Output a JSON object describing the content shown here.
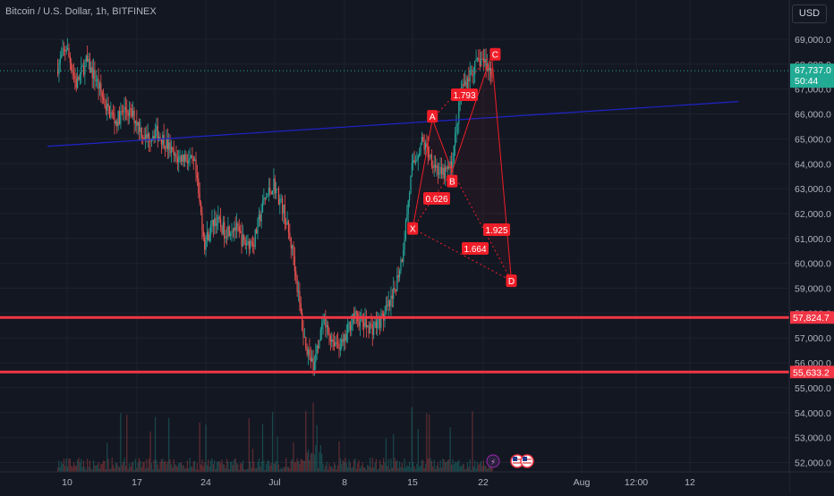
{
  "header": {
    "symbol_title": "Bitcoin / U.S. Dollar, 1h, BITFINEX",
    "currency": "USD"
  },
  "price_axis": {
    "ticks": [
      "69,000.0",
      "68,000.0",
      "67,000.0",
      "66,000.0",
      "65,000.0",
      "64,000.0",
      "63,000.0",
      "62,000.0",
      "61,000.0",
      "60,000.0",
      "59,000.0",
      "58,000.0",
      "57,000.0",
      "56,000.0",
      "55,000.0",
      "54,000.0",
      "53,000.0",
      "52,000.0"
    ],
    "current_price": "67,737.0",
    "countdown": "50:44",
    "level_labels": [
      "57,824.7",
      "55,633.2"
    ]
  },
  "time_axis": {
    "ticks": [
      "10",
      "17",
      "24",
      "Jul",
      "8",
      "15",
      "22",
      "Aug",
      "12:00",
      "12"
    ]
  },
  "pattern_points": [
    "X",
    "A",
    "B",
    "C",
    "D"
  ],
  "pattern_ratios": [
    "1.793",
    "0.626",
    "1.925",
    "1.664"
  ],
  "event_icons": [
    "lightning-icon",
    "us-flag-icon",
    "us-flag-icon"
  ],
  "colors": {
    "background": "#131722",
    "up": "#26a69a",
    "down": "#ef5350",
    "pattern": "#f01e28",
    "trendline": "#1e24c8",
    "current_price": "#22ab94",
    "level_line": "#f23645"
  },
  "chart_data": {
    "type": "candlestick",
    "title": "Bitcoin / U.S. Dollar, 1h, BITFINEX",
    "ylim": [
      51700,
      69600
    ],
    "x_ticks": [
      "10",
      "17",
      "24",
      "Jul",
      "8",
      "15",
      "22",
      "Aug",
      "12:00",
      "12"
    ],
    "price_path": [
      [
        "Jun 9",
        67800
      ],
      [
        "Jun 10",
        68700
      ],
      [
        "Jun 11",
        67200
      ],
      [
        "Jun 12",
        68100
      ],
      [
        "Jun 13",
        67400
      ],
      [
        "Jun 14",
        66300
      ],
      [
        "Jun 15",
        65700
      ],
      [
        "Jun 16",
        66200
      ],
      [
        "Jun 17",
        65800
      ],
      [
        "Jun 18",
        65000
      ],
      [
        "Jun 19",
        65300
      ],
      [
        "Jun 20",
        64900
      ],
      [
        "Jun 21",
        64200
      ],
      [
        "Jun 22",
        64300
      ],
      [
        "Jun 23",
        63900
      ],
      [
        "Jun 24",
        60800
      ],
      [
        "Jun 25",
        61800
      ],
      [
        "Jun 26",
        61300
      ],
      [
        "Jun 27",
        61500
      ],
      [
        "Jun 28",
        60800
      ],
      [
        "Jun 29",
        60900
      ],
      [
        "Jun 30",
        62500
      ],
      [
        "Jul 1",
        63200
      ],
      [
        "Jul 2",
        62100
      ],
      [
        "Jul 3",
        60300
      ],
      [
        "Jul 4",
        57100
      ],
      [
        "Jul 5",
        55800
      ],
      [
        "Jul 6",
        57600
      ],
      [
        "Jul 7",
        56900
      ],
      [
        "Jul 8",
        56700
      ],
      [
        "Jul 9",
        57900
      ],
      [
        "Jul 10",
        57600
      ],
      [
        "Jul 11",
        57400
      ],
      [
        "Jul 12",
        57800
      ],
      [
        "Jul 13",
        58500
      ],
      [
        "Jul 14",
        60300
      ],
      [
        "Jul 15",
        63800
      ],
      [
        "Jul 16",
        64900
      ],
      [
        "Jul 17",
        64200
      ],
      [
        "Jul 18",
        63500
      ],
      [
        "Jul 19",
        63900
      ],
      [
        "Jul 20",
        67000
      ],
      [
        "Jul 21",
        67700
      ],
      [
        "Jul 22",
        68200
      ],
      [
        "Jul 23",
        67737
      ]
    ],
    "pattern": {
      "name": "XABCD",
      "X": [
        "Jul 15",
        61400
      ],
      "A": [
        "Jul 17",
        65800
      ],
      "B": [
        "Jul 19",
        63700
      ],
      "C": [
        "Jul 23",
        68400
      ],
      "D": [
        "Jul 25",
        59300
      ],
      "ratios": [
        "1.793",
        "0.626",
        "1.925",
        "1.664"
      ]
    },
    "trendline": [
      [
        "Jun 8",
        64700
      ],
      [
        "Aug 17",
        66500
      ]
    ],
    "horizontal_levels": [
      57824.7,
      55633.2
    ],
    "current_price": 67737.0
  }
}
